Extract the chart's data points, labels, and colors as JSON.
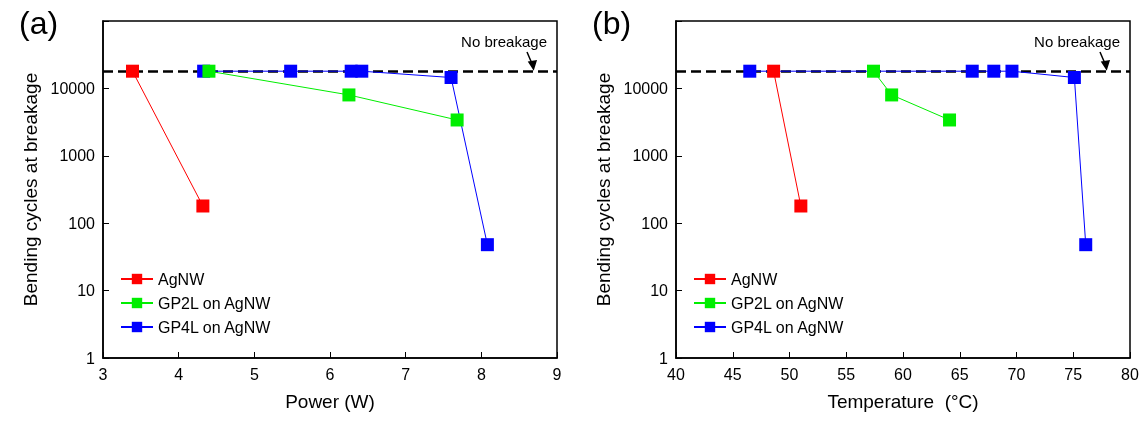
{
  "chart_data": [
    {
      "type": "line",
      "title": "(a)",
      "xlabel": "Power (W)",
      "ylabel": "Bending cycles at breakage",
      "log": "y",
      "xlim": [
        3,
        9
      ],
      "xticks": [
        3,
        4,
        5,
        6,
        7,
        8,
        9
      ],
      "ylim": [
        1,
        100000
      ],
      "yticks": [
        1,
        10,
        100,
        1000,
        10000,
        {
          "value": 100000,
          "label": null
        }
      ],
      "grid": false,
      "legend": "bottom left",
      "marker": "square",
      "line_style": "solid",
      "ref_lines": [
        {
          "axis": "y",
          "value": 18000,
          "label": "No breakage",
          "color": "#000000",
          "line_style": "dashed"
        }
      ],
      "series": [
        {
          "name": "AgNW",
          "color": "#ff0000",
          "x": [
            3.39,
            4.32
          ],
          "values": [
            18000,
            180
          ]
        },
        {
          "name": "GP2L on AgNW",
          "color": "#00ee00",
          "x": [
            4.4,
            6.25,
            7.68
          ],
          "values": [
            18000,
            8000,
            3400
          ]
        },
        {
          "name": "GP4L on AgNW",
          "color": "#0000ff",
          "x": [
            4.33,
            5.48,
            6.28,
            6.42,
            7.6,
            8.08
          ],
          "values": [
            18000,
            18000,
            18000,
            18000,
            14500,
            48
          ]
        }
      ]
    },
    {
      "type": "line",
      "title": "(b)",
      "xlabel": "Temperature  (°C)",
      "ylabel": "Bending cycles at breakage",
      "log": "y",
      "xlim": [
        40,
        80
      ],
      "xticks": [
        40,
        45,
        50,
        55,
        60,
        65,
        70,
        75,
        80
      ],
      "ylim": [
        1,
        100000
      ],
      "yticks": [
        1,
        10,
        100,
        1000,
        10000,
        {
          "value": 100000,
          "label": null
        }
      ],
      "grid": false,
      "legend": "bottom left",
      "marker": "square",
      "line_style": "solid",
      "ref_lines": [
        {
          "axis": "y",
          "value": 18000,
          "label": "No breakage",
          "color": "#000000",
          "line_style": "dashed"
        }
      ],
      "series": [
        {
          "name": "AgNW",
          "color": "#ff0000",
          "x": [
            48.6,
            51
          ],
          "values": [
            18000,
            180
          ]
        },
        {
          "name": "GP2L on AgNW",
          "color": "#00ee00",
          "x": [
            57.4,
            59,
            64.1
          ],
          "values": [
            18000,
            8000,
            3400
          ]
        },
        {
          "name": "GP4L on AgNW",
          "color": "#0000ff",
          "x": [
            46.5,
            66.1,
            68,
            69.6,
            75.1,
            76.1
          ],
          "values": [
            18000,
            18000,
            18000,
            18000,
            14500,
            48
          ]
        }
      ]
    }
  ]
}
